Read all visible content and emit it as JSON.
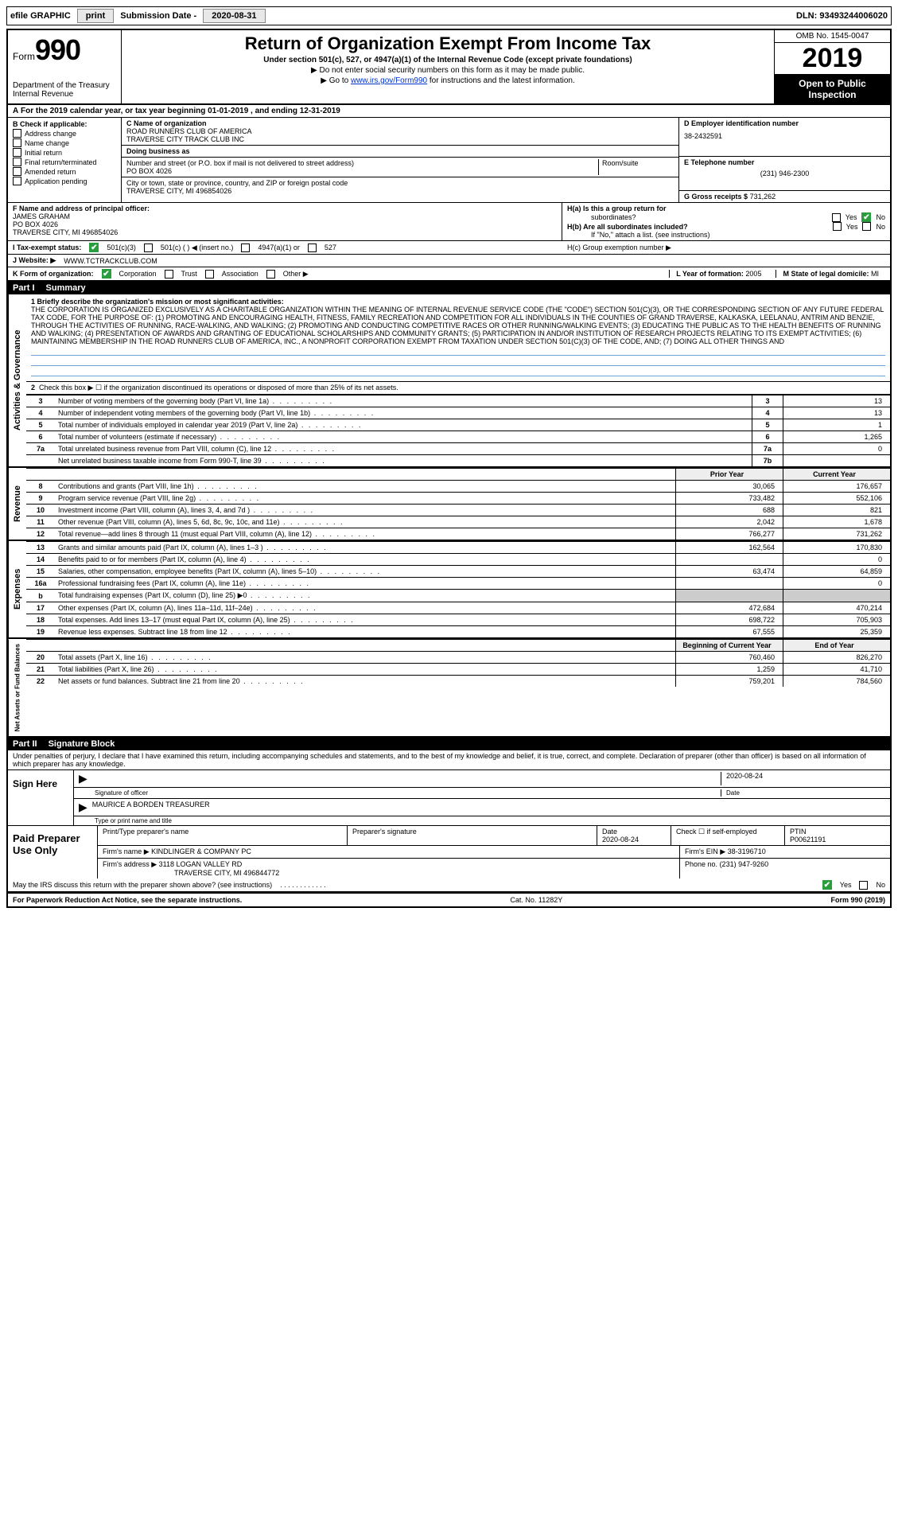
{
  "topbar": {
    "efile": "efile GRAPHIC",
    "print": "print",
    "sub_lbl": "Submission Date -",
    "sub_date": "2020-08-31",
    "dln_lbl": "DLN:",
    "dln": "93493244006020"
  },
  "header": {
    "form_word": "Form",
    "form_num": "990",
    "dept": "Department of the Treasury",
    "irs": "Internal Revenue",
    "title": "Return of Organization Exempt From Income Tax",
    "sub": "Under section 501(c), 527, or 4947(a)(1) of the Internal Revenue Code (except private foundations)",
    "sub2a": "▶ Do not enter social security numbers on this form as it may be made public.",
    "sub2b_pre": "▶ Go to ",
    "sub2b_link": "www.irs.gov/Form990",
    "sub2b_post": " for instructions and the latest information.",
    "omb": "OMB No. 1545-0047",
    "year": "2019",
    "otp1": "Open to Public",
    "otp2": "Inspection"
  },
  "period": {
    "a": "A",
    "txt1": "For the 2019 calendar year, or tax year beginning ",
    "d1": "01-01-2019",
    "txt2": " , and ending ",
    "d2": "12-31-2019"
  },
  "b": {
    "hdr": "B Check if applicable:",
    "items": [
      "Address change",
      "Name change",
      "Initial return",
      "Final return/terminated",
      "Amended return",
      "Application pending"
    ]
  },
  "c": {
    "name_lbl": "C Name of organization",
    "name1": "ROAD RUNNERS CLUB OF AMERICA",
    "name2": "TRAVERSE CITY TRACK CLUB INC",
    "dba_lbl": "Doing business as",
    "addr_lbl": "Number and street (or P.O. box if mail is not delivered to street address)",
    "room_lbl": "Room/suite",
    "addr": "PO BOX 4026",
    "city_lbl": "City or town, state or province, country, and ZIP or foreign postal code",
    "city": "TRAVERSE CITY, MI  496854026"
  },
  "d": {
    "lbl": "D Employer identification number",
    "val": "38-2432591"
  },
  "e": {
    "lbl": "E Telephone number",
    "val": "(231) 946-2300"
  },
  "g": {
    "lbl": "G Gross receipts $",
    "val": "731,262"
  },
  "f": {
    "lbl": "F  Name and address of principal officer:",
    "name": "JAMES GRAHAM",
    "addr1": "PO BOX 4026",
    "addr2": "TRAVERSE CITY, MI  496854026"
  },
  "h": {
    "ha": "H(a)  Is this a group return for",
    "ha2": "subordinates?",
    "hb": "H(b)  Are all subordinates included?",
    "hb2": "If \"No,\" attach a list. (see instructions)",
    "hc": "H(c)  Group exemption number ▶",
    "yes": "Yes",
    "no": "No"
  },
  "i": {
    "lbl": "I   Tax-exempt status:",
    "o1": "501(c)(3)",
    "o2": "501(c) (   ) ◀ (insert no.)",
    "o3": "4947(a)(1) or",
    "o4": "527"
  },
  "j": {
    "lbl": "J   Website: ▶",
    "val": "WWW.TCTRACKCLUB.COM"
  },
  "k": {
    "lbl": "K Form of organization:",
    "o1": "Corporation",
    "o2": "Trust",
    "o3": "Association",
    "o4": "Other ▶"
  },
  "l": {
    "lbl": "L Year of formation:",
    "val": "2005"
  },
  "m": {
    "lbl": "M State of legal domicile:",
    "val": "MI"
  },
  "part1": {
    "num": "Part I",
    "title": "Summary",
    "side_ag": "Activities & Governance",
    "side_rev": "Revenue",
    "side_exp": "Expenses",
    "side_na": "Net Assets or Fund Balances",
    "line1_lbl": "1   Briefly describe the organization's mission or most significant activities:",
    "mission": "THE CORPORATION IS ORGANIZED EXCLUSIVELY AS A CHARITABLE ORGANIZATION WITHIN THE MEANING OF INTERNAL REVENUE SERVICE CODE (THE \"CODE\") SECTION 501(C)(3), OR THE CORRESPONDING SECTION OF ANY FUTURE FEDERAL TAX CODE, FOR THE PURPOSE OF: (1) PROMOTING AND ENCOURAGING HEALTH, FITNESS, FAMILY RECREATION AND COMPETITION FOR ALL INDIVIDUALS IN THE COUNTIES OF GRAND TRAVERSE, KALKASKA, LEELANAU, ANTRIM AND BENZIE, THROUGH THE ACTIVITIES OF RUNNING, RACE-WALKING, AND WALKING; (2) PROMOTING AND CONDUCTING COMPETITIVE RACES OR OTHER RUNNING/WALKING EVENTS; (3) EDUCATING THE PUBLIC AS TO THE HEALTH BENEFITS OF RUNNING AND WALKING; (4) PRESENTATION OF AWARDS AND GRANTING OF EDUCATIONAL SCHOLARSHIPS AND COMMUNITY GRANTS; (5) PARTICIPATION IN AND/OR INSTITUTION OF RESEARCH PROJECTS RELATING TO ITS EXEMPT ACTIVITIES; (6) MAINTAINING MEMBERSHIP IN THE ROAD RUNNERS CLUB OF AMERICA, INC., A NONPROFIT CORPORATION EXEMPT FROM TAXATION UNDER SECTION 501(C)(3) OF THE CODE, AND; (7) DOING ALL OTHER THINGS AND",
    "line2": "Check this box ▶ ☐ if the organization discontinued its operations or disposed of more than 25% of its net assets.",
    "rows_ag": [
      {
        "n": "3",
        "d": "Number of voting members of the governing body (Part VI, line 1a)",
        "b": "3",
        "v": "13"
      },
      {
        "n": "4",
        "d": "Number of independent voting members of the governing body (Part VI, line 1b)",
        "b": "4",
        "v": "13"
      },
      {
        "n": "5",
        "d": "Total number of individuals employed in calendar year 2019 (Part V, line 2a)",
        "b": "5",
        "v": "1"
      },
      {
        "n": "6",
        "d": "Total number of volunteers (estimate if necessary)",
        "b": "6",
        "v": "1,265"
      },
      {
        "n": "7a",
        "d": "Total unrelated business revenue from Part VIII, column (C), line 12",
        "b": "7a",
        "v": "0"
      },
      {
        "n": "",
        "d": "Net unrelated business taxable income from Form 990-T, line 39",
        "b": "7b",
        "v": ""
      }
    ],
    "col_prior": "Prior Year",
    "col_curr": "Current Year",
    "rows_rev": [
      {
        "n": "8",
        "d": "Contributions and grants (Part VIII, line 1h)",
        "p": "30,065",
        "c": "176,657"
      },
      {
        "n": "9",
        "d": "Program service revenue (Part VIII, line 2g)",
        "p": "733,482",
        "c": "552,106"
      },
      {
        "n": "10",
        "d": "Investment income (Part VIII, column (A), lines 3, 4, and 7d )",
        "p": "688",
        "c": "821"
      },
      {
        "n": "11",
        "d": "Other revenue (Part VIII, column (A), lines 5, 6d, 8c, 9c, 10c, and 11e)",
        "p": "2,042",
        "c": "1,678"
      },
      {
        "n": "12",
        "d": "Total revenue—add lines 8 through 11 (must equal Part VIII, column (A), line 12)",
        "p": "766,277",
        "c": "731,262"
      }
    ],
    "rows_exp": [
      {
        "n": "13",
        "d": "Grants and similar amounts paid (Part IX, column (A), lines 1–3 )",
        "p": "162,564",
        "c": "170,830"
      },
      {
        "n": "14",
        "d": "Benefits paid to or for members (Part IX, column (A), line 4)",
        "p": "",
        "c": "0"
      },
      {
        "n": "15",
        "d": "Salaries, other compensation, employee benefits (Part IX, column (A), lines 5–10)",
        "p": "63,474",
        "c": "64,859"
      },
      {
        "n": "16a",
        "d": "Professional fundraising fees (Part IX, column (A), line 11e)",
        "p": "",
        "c": "0"
      },
      {
        "n": "b",
        "d": "Total fundraising expenses (Part IX, column (D), line 25) ▶0",
        "p": "shade",
        "c": "shade"
      },
      {
        "n": "17",
        "d": "Other expenses (Part IX, column (A), lines 11a–11d, 11f–24e)",
        "p": "472,684",
        "c": "470,214"
      },
      {
        "n": "18",
        "d": "Total expenses. Add lines 13–17 (must equal Part IX, column (A), line 25)",
        "p": "698,722",
        "c": "705,903"
      },
      {
        "n": "19",
        "d": "Revenue less expenses. Subtract line 18 from line 12",
        "p": "67,555",
        "c": "25,359"
      }
    ],
    "col_beg": "Beginning of Current Year",
    "col_end": "End of Year",
    "rows_na": [
      {
        "n": "20",
        "d": "Total assets (Part X, line 16)",
        "p": "760,460",
        "c": "826,270"
      },
      {
        "n": "21",
        "d": "Total liabilities (Part X, line 26)",
        "p": "1,259",
        "c": "41,710"
      },
      {
        "n": "22",
        "d": "Net assets or fund balances. Subtract line 21 from line 20",
        "p": "759,201",
        "c": "784,560"
      }
    ]
  },
  "part2": {
    "num": "Part II",
    "title": "Signature Block",
    "intro": "Under penalties of perjury, I declare that I have examined this return, including accompanying schedules and statements, and to the best of my knowledge and belief, it is true, correct, and complete. Declaration of preparer (other than officer) is based on all information of which preparer has any knowledge.",
    "sign": "Sign Here",
    "sig_officer": "Signature of officer",
    "sig_date_lbl": "Date",
    "sig_date": "2020-08-24",
    "officer": "MAURICE A BORDEN  TREASURER",
    "officer_lbl": "Type or print name and title",
    "paid": "Paid Preparer Use Only",
    "p_name_lbl": "Print/Type preparer's name",
    "p_sig_lbl": "Preparer's signature",
    "p_date_lbl": "Date",
    "p_date": "2020-08-24",
    "p_self": "Check ☐ if self-employed",
    "ptin_lbl": "PTIN",
    "ptin": "P00621191",
    "firm_lbl": "Firm's name    ▶",
    "firm": "KINDLINGER & COMPANY PC",
    "ein_lbl": "Firm's EIN ▶",
    "ein": "38-3196710",
    "addr_lbl": "Firm's address ▶",
    "addr1": "3118 LOGAN VALLEY RD",
    "addr2": "TRAVERSE CITY, MI  496844772",
    "phone_lbl": "Phone no.",
    "phone": "(231) 947-9260",
    "discuss": "May the IRS discuss this return with the preparer shown above? (see instructions)"
  },
  "footer": {
    "l": "For Paperwork Reduction Act Notice, see the separate instructions.",
    "m": "Cat. No. 11282Y",
    "r": "Form 990 (2019)"
  }
}
